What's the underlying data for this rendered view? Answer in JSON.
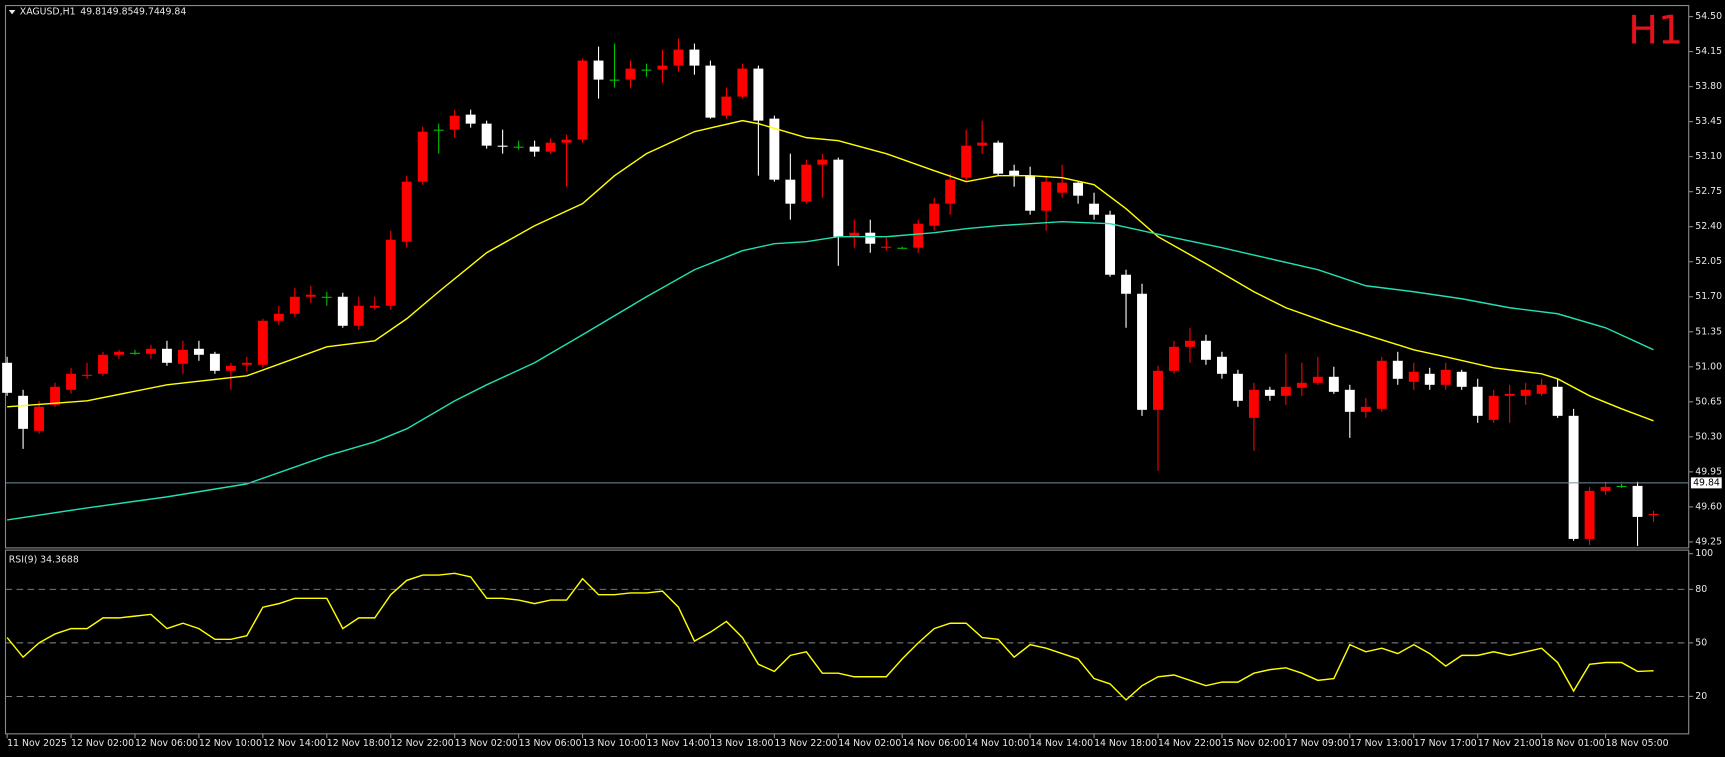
{
  "chart_data": [
    {
      "type": "candlestick",
      "title": "XAGUSD,H1",
      "header_values": [
        "49.81",
        "49.85",
        "49.74",
        "49.84"
      ],
      "timeframe": "H1",
      "up_color": "#ff0000",
      "down_color": "#ffffff",
      "doji_color": "#00c000",
      "open": [
        51.04,
        50.71,
        50.36,
        50.62,
        50.77,
        50.91,
        50.93,
        51.12,
        51.14,
        51.13,
        51.18,
        51.03,
        51.18,
        51.13,
        50.96,
        51.02,
        51.02,
        51.46,
        51.53,
        51.7,
        51.7,
        51.7,
        51.41,
        51.59,
        51.61,
        52.25,
        52.85,
        53.37,
        53.37,
        53.52,
        53.43,
        53.21,
        53.2,
        53.2,
        53.15,
        53.24,
        53.27,
        54.06,
        53.87,
        53.87,
        53.97,
        53.97,
        54.01,
        54.17,
        54.01,
        53.51,
        53.7,
        53.98,
        53.48,
        52.87,
        52.65,
        53.02,
        53.07,
        52.3,
        52.34,
        52.19,
        52.19,
        52.19,
        52.41,
        52.63,
        52.89,
        53.21,
        53.24,
        52.96,
        52.91,
        52.56,
        52.74,
        52.84,
        52.63,
        52.52,
        51.92,
        51.73,
        50.57,
        50.96,
        51.2,
        51.26,
        51.1,
        50.93,
        50.49,
        50.77,
        50.71,
        50.79,
        50.84,
        50.9,
        50.77,
        50.55,
        50.58,
        51.06,
        50.85,
        50.93,
        50.82,
        50.95,
        50.8,
        50.47,
        50.71,
        50.71,
        50.73,
        50.8,
        50.51,
        49.28,
        49.76,
        49.81,
        49.81,
        49.52
      ],
      "high": [
        51.1,
        50.77,
        50.66,
        50.84,
        50.99,
        51.04,
        51.15,
        51.17,
        51.17,
        51.22,
        51.26,
        51.26,
        51.26,
        51.15,
        51.04,
        51.1,
        51.48,
        51.61,
        51.79,
        51.81,
        51.75,
        51.74,
        51.7,
        51.7,
        52.36,
        52.91,
        53.4,
        53.43,
        53.57,
        53.57,
        53.46,
        53.37,
        53.26,
        53.26,
        53.28,
        53.32,
        54.08,
        54.2,
        54.23,
        54.06,
        54.03,
        54.17,
        54.28,
        54.23,
        54.06,
        53.79,
        54.03,
        54.01,
        53.51,
        53.13,
        53.07,
        53.13,
        53.09,
        52.47,
        52.47,
        52.3,
        52.2,
        52.47,
        52.69,
        52.93,
        53.37,
        53.46,
        53.26,
        53.02,
        53.0,
        52.91,
        53.02,
        52.85,
        52.74,
        52.56,
        51.97,
        51.83,
        51.01,
        51.26,
        51.39,
        51.32,
        51.15,
        50.97,
        50.84,
        50.8,
        51.13,
        51.04,
        51.1,
        51.0,
        50.82,
        50.69,
        51.1,
        51.15,
        51.04,
        50.99,
        51.04,
        50.97,
        50.88,
        50.77,
        50.82,
        50.84,
        50.88,
        50.88,
        50.58,
        49.8,
        49.85,
        49.83,
        49.85,
        49.56
      ],
      "low": [
        50.71,
        50.18,
        50.33,
        50.6,
        50.73,
        50.88,
        50.91,
        51.08,
        51.12,
        51.08,
        51.01,
        50.93,
        51.06,
        50.93,
        50.77,
        50.95,
        50.99,
        51.42,
        51.5,
        51.64,
        51.61,
        51.39,
        51.37,
        51.57,
        51.57,
        52.19,
        52.82,
        53.13,
        53.29,
        53.39,
        53.18,
        53.13,
        53.17,
        53.1,
        53.13,
        52.8,
        53.24,
        53.68,
        53.79,
        53.79,
        53.9,
        53.84,
        53.95,
        53.92,
        53.48,
        53.48,
        53.68,
        52.91,
        52.85,
        52.47,
        52.63,
        52.69,
        52.01,
        52.19,
        52.14,
        52.16,
        52.18,
        52.14,
        52.36,
        52.52,
        52.85,
        53.13,
        52.91,
        52.8,
        52.52,
        52.36,
        52.69,
        52.63,
        52.47,
        51.9,
        51.39,
        50.51,
        49.96,
        50.93,
        51.04,
        51.02,
        50.88,
        50.6,
        50.16,
        50.66,
        50.62,
        50.71,
        50.82,
        50.73,
        50.29,
        50.49,
        50.55,
        50.82,
        50.77,
        50.77,
        50.77,
        50.77,
        50.44,
        50.44,
        50.44,
        50.62,
        50.71,
        50.49,
        49.26,
        49.22,
        49.72,
        49.79,
        49.21,
        49.45
      ],
      "close": [
        50.74,
        50.38,
        50.6,
        50.8,
        50.93,
        50.92,
        51.12,
        51.15,
        51.14,
        51.18,
        51.04,
        51.17,
        51.12,
        50.96,
        51.01,
        51.04,
        51.46,
        51.53,
        51.7,
        51.72,
        51.7,
        51.41,
        51.61,
        51.61,
        52.27,
        52.85,
        53.35,
        53.37,
        53.51,
        53.43,
        53.21,
        53.2,
        53.2,
        53.15,
        53.24,
        53.27,
        54.06,
        53.87,
        53.87,
        53.98,
        53.97,
        54.01,
        54.17,
        54.01,
        53.49,
        53.7,
        53.98,
        53.46,
        52.87,
        52.63,
        53.02,
        53.07,
        52.3,
        52.34,
        52.23,
        52.2,
        52.19,
        52.43,
        52.63,
        52.87,
        53.21,
        53.24,
        52.93,
        52.91,
        52.56,
        52.85,
        52.84,
        52.71,
        52.52,
        51.92,
        51.73,
        50.57,
        50.96,
        51.2,
        51.26,
        51.07,
        50.93,
        50.66,
        50.77,
        50.71,
        50.8,
        50.84,
        50.9,
        50.75,
        50.55,
        50.6,
        51.06,
        50.88,
        50.95,
        50.82,
        50.97,
        50.8,
        50.51,
        50.71,
        50.73,
        50.77,
        50.82,
        50.51,
        49.28,
        49.76,
        49.8,
        49.81,
        49.5,
        49.53
      ],
      "lines": [
        {
          "color": "#ffff00",
          "x": [
            0,
            5,
            10,
            15,
            20,
            23,
            25,
            27,
            30,
            33,
            36,
            38,
            40,
            43,
            46,
            47,
            50,
            52,
            55,
            58,
            60,
            62,
            64,
            66,
            68,
            70,
            72,
            75,
            78,
            80,
            83,
            85,
            88,
            90,
            93,
            95,
            96,
            97,
            99,
            101,
            103
          ],
          "values": [
            50.6,
            50.66,
            50.82,
            50.91,
            51.2,
            51.26,
            51.48,
            51.75,
            52.14,
            52.41,
            52.63,
            52.91,
            53.13,
            53.35,
            53.46,
            53.43,
            53.29,
            53.26,
            53.13,
            52.96,
            52.85,
            52.91,
            52.91,
            52.89,
            52.82,
            52.58,
            52.3,
            52.03,
            51.75,
            51.59,
            51.42,
            51.32,
            51.17,
            51.1,
            50.99,
            50.95,
            50.93,
            50.88,
            50.71,
            50.58,
            50.46
          ]
        },
        {
          "color": "#20e0b0",
          "x": [
            0,
            5,
            10,
            15,
            20,
            23,
            25,
            28,
            30,
            33,
            36,
            40,
            43,
            46,
            48,
            50,
            52,
            55,
            58,
            60,
            62,
            64,
            66,
            69,
            71,
            73,
            76,
            79,
            82,
            85,
            88,
            91,
            94,
            97,
            100,
            103
          ],
          "values": [
            49.47,
            49.59,
            49.7,
            49.83,
            50.11,
            50.25,
            50.38,
            50.66,
            50.82,
            51.04,
            51.32,
            51.7,
            51.97,
            52.16,
            52.23,
            52.25,
            52.3,
            52.3,
            52.34,
            52.38,
            52.41,
            52.43,
            52.45,
            52.43,
            52.36,
            52.29,
            52.19,
            52.08,
            51.97,
            51.81,
            51.75,
            51.68,
            51.59,
            51.53,
            51.39,
            51.17
          ]
        }
      ],
      "last_price": 49.84,
      "xlim": [
        -0.1,
        105.2
      ],
      "ylim": [
        49.19,
        54.61
      ],
      "yticks": [
        {
          "value": 54.5,
          "label": "54.50"
        },
        54.15,
        {
          "value": 53.8,
          "label": "53.80"
        },
        53.45,
        {
          "value": 53.1,
          "label": "53.10"
        },
        52.75,
        {
          "value": 52.4,
          "label": "52.40"
        },
        52.05,
        {
          "value": 51.7,
          "label": "51.70"
        },
        51.35,
        {
          "value": 51,
          "label": "51.00"
        },
        50.65,
        {
          "value": 50.3,
          "label": "50.30"
        },
        49.95,
        {
          "value": 49.6,
          "label": "49.60"
        },
        49.25
      ],
      "xticks": [
        {
          "value": 0,
          "label": "11 Nov 2025"
        },
        {
          "value": 4,
          "label": "12 Nov 02:00"
        },
        {
          "value": 8,
          "label": "12 Nov 06:00"
        },
        {
          "value": 12,
          "label": "12 Nov 10:00"
        },
        {
          "value": 16,
          "label": "12 Nov 14:00"
        },
        {
          "value": 20,
          "label": "12 Nov 18:00"
        },
        {
          "value": 24,
          "label": "12 Nov 22:00"
        },
        {
          "value": 28,
          "label": "13 Nov 02:00"
        },
        {
          "value": 32,
          "label": "13 Nov 06:00"
        },
        {
          "value": 36,
          "label": "13 Nov 10:00"
        },
        {
          "value": 40,
          "label": "13 Nov 14:00"
        },
        {
          "value": 44,
          "label": "13 Nov 18:00"
        },
        {
          "value": 48,
          "label": "13 Nov 22:00"
        },
        {
          "value": 52,
          "label": "14 Nov 02:00"
        },
        {
          "value": 56,
          "label": "14 Nov 06:00"
        },
        {
          "value": 60,
          "label": "14 Nov 10:00"
        },
        {
          "value": 64,
          "label": "14 Nov 14:00"
        },
        {
          "value": 68,
          "label": "14 Nov 18:00"
        },
        {
          "value": 72,
          "label": "14 Nov 22:00"
        },
        {
          "value": 76,
          "label": "15 Nov 02:00"
        },
        {
          "value": 80,
          "label": "17 Nov 09:00"
        },
        {
          "value": 84,
          "label": "17 Nov 13:00"
        },
        {
          "value": 88,
          "label": "17 Nov 17:00"
        },
        {
          "value": 92,
          "label": "17 Nov 21:00"
        },
        {
          "value": 96,
          "label": "18 Nov 01:00"
        },
        {
          "value": 100,
          "label": "18 Nov 05:00"
        }
      ]
    },
    {
      "type": "line",
      "title": "RSI(9) 34.3688",
      "color": "#ffff00",
      "values": [
        53,
        42,
        50,
        55,
        58,
        58,
        64,
        64,
        65,
        66,
        58,
        61,
        58,
        52,
        52,
        54,
        70,
        72,
        75,
        75,
        75,
        58,
        64,
        64,
        77,
        85,
        88,
        88,
        89,
        87,
        75,
        75,
        74,
        72,
        74,
        74,
        86,
        77,
        77,
        78,
        78,
        79,
        70,
        51,
        56,
        62,
        53,
        38,
        34,
        43,
        45,
        33,
        33,
        31,
        31,
        31,
        41,
        50,
        58,
        61,
        61,
        53,
        52,
        42,
        49,
        47,
        44,
        41,
        30,
        27,
        18,
        26,
        31,
        32,
        29,
        26,
        28,
        28,
        33,
        35,
        36,
        33,
        29,
        30,
        49,
        45,
        47,
        44,
        49,
        44,
        37,
        43,
        43,
        45,
        43,
        45,
        47,
        39,
        23,
        38,
        39,
        39,
        34,
        34.37
      ],
      "ylim": [
        -1,
        102
      ],
      "yticks": [
        100,
        80,
        50,
        20
      ],
      "levels": [
        80,
        50,
        20
      ]
    }
  ]
}
